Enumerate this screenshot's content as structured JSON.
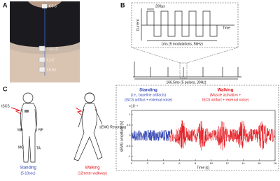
{
  "panel_a": {
    "label": "A",
    "electrodes": [
      "C5-6",
      "T11-12",
      "L1-2",
      "L5-S1"
    ]
  },
  "panel_b": {
    "label": "B",
    "pulse_width": "200µs",
    "y_label": "Current",
    "x_label": "Time",
    "zoom_caption": "1ms (5 modulations, 5kHz)",
    "train_caption": "166.5ms (5 pulses, 30Hz)"
  },
  "panel_c": {
    "label": "C",
    "stimulation": "tSCS",
    "muscles": [
      "MH",
      "RF",
      "MG",
      "TA"
    ],
    "standing": {
      "title": "Standing",
      "subtitle": "(5-10sec)"
    },
    "walking": {
      "title": "Walking",
      "subtitle": "(12meter walkway)"
    },
    "recording": "sEMG Recording",
    "plot": {
      "standing_title": "Standing",
      "standing_note1": "(i.e., baseline artifacts)",
      "standing_note2": "(tSCS artifact + external noise)",
      "walking_title": "Walking",
      "walking_note1": "(Muscle activation +",
      "walking_note2": "tSCS artifact + external noise)",
      "y_label": "sEMG amplitude [V]",
      "x_label": "Time [s]",
      "y_scale": "×10⁻⁴",
      "xlim": [
        0,
        18
      ],
      "xticks": [
        0,
        2,
        4,
        6,
        8,
        10,
        12,
        14,
        16,
        18
      ],
      "ylim": [
        -1.2,
        1.2
      ],
      "yticks": [
        -1,
        -0.5,
        0,
        0.5,
        1
      ],
      "standing_color": "#2b3fb0",
      "walking_color": "#e3141b"
    }
  }
}
